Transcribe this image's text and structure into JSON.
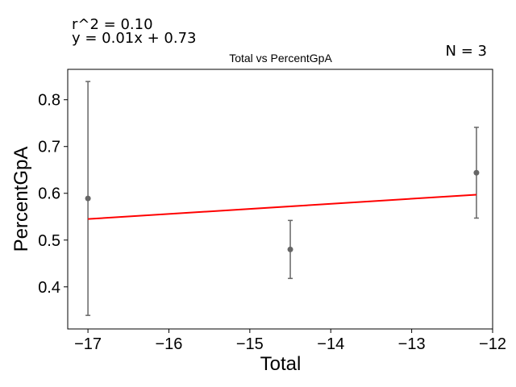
{
  "chart_data": {
    "type": "scatter",
    "title": "Total vs PercentGpA",
    "xlabel": "Total",
    "ylabel": "PercentGpA",
    "annotations": {
      "r2": "r^2 = 0.10",
      "equation": "y = 0.01x + 0.73",
      "n": "N = 3"
    },
    "xlim": [
      -17.25,
      -12.0
    ],
    "ylim": [
      0.31,
      0.865
    ],
    "xticks": [
      -17,
      -16,
      -15,
      -14,
      -13,
      -12
    ],
    "xtick_labels": [
      "−17",
      "−16",
      "−15",
      "−14",
      "−13",
      "−12"
    ],
    "yticks": [
      0.4,
      0.5,
      0.6,
      0.7,
      0.8
    ],
    "ytick_labels": [
      "0.4",
      "0.5",
      "0.6",
      "0.7",
      "0.8"
    ],
    "points": [
      {
        "x": -17.0,
        "y": 0.589,
        "err_low": 0.339,
        "err_high": 0.839
      },
      {
        "x": -14.5,
        "y": 0.48,
        "err_low": 0.418,
        "err_high": 0.542
      },
      {
        "x": -12.2,
        "y": 0.644,
        "err_low": 0.547,
        "err_high": 0.741
      }
    ],
    "fit_line": {
      "x": [
        -17.0,
        -12.2
      ],
      "y": [
        0.545,
        0.597
      ]
    },
    "colors": {
      "points": "#666666",
      "fit": "#ff0000",
      "axes": "#000000"
    },
    "grid": false
  }
}
